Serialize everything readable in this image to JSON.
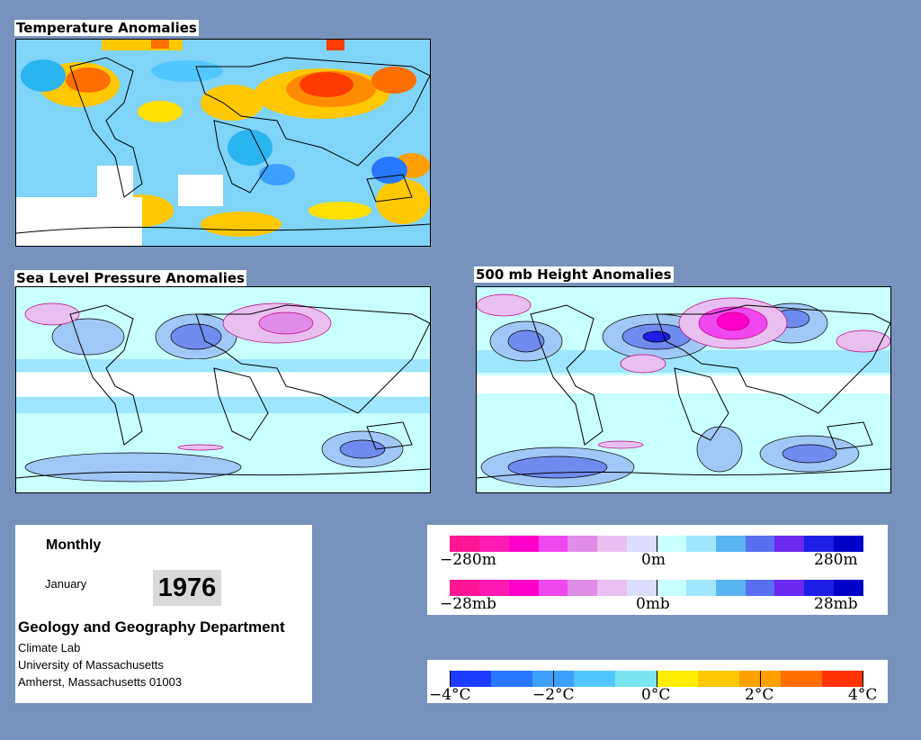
{
  "maps": {
    "temperature": {
      "title": "Temperature Anomalies"
    },
    "slp": {
      "title": "Sea Level Pressure Anomalies"
    },
    "height": {
      "title": "500 mb Height Anomalies"
    }
  },
  "info": {
    "period": "Monthly",
    "month": "January",
    "year": "1976",
    "department": "Geology and Geography Department",
    "lab": "Climate Lab",
    "university": "University of Massachusetts",
    "address": "Amherst, Massachusetts 01003"
  },
  "legends": {
    "height_scale": {
      "labels": [
        "−280m",
        "0m",
        "280m"
      ],
      "colors": [
        "#ff1493",
        "#ff1ab3",
        "#ff00cc",
        "#f048f0",
        "#e08ce8",
        "#e8bff0",
        "#dcdcff",
        "#c8ffff",
        "#9ee6ff",
        "#5ab4f0",
        "#5a6ef0",
        "#6a28f0",
        "#1e1ee6",
        "#0000c8"
      ]
    },
    "pressure_scale": {
      "labels": [
        "−28mb",
        "0mb",
        "28mb"
      ],
      "colors": [
        "#ff1493",
        "#ff1ab3",
        "#ff00cc",
        "#f048f0",
        "#e08ce8",
        "#e8bff0",
        "#dcdcff",
        "#c8ffff",
        "#9ee6ff",
        "#5ab4f0",
        "#5a6ef0",
        "#6a28f0",
        "#1e1ee6",
        "#0000c8"
      ]
    },
    "temperature_scale": {
      "labels": [
        "−4°C",
        "−2°C",
        "0°C",
        "2°C",
        "4°C"
      ],
      "colors": [
        "#1e3cff",
        "#2878ff",
        "#3ca0ff",
        "#50c8ff",
        "#78e6f0",
        "#ffee00",
        "#ffc800",
        "#ffa000",
        "#ff6e00",
        "#ff3200"
      ]
    }
  },
  "colors": {
    "page_background": "#7792bc",
    "temp_cold": "#2ab4f0",
    "temp_warm": "#ffc800",
    "temp_hot": "#ff3c00",
    "anomaly_blue": "#6e8cf0",
    "anomaly_pink": "#f0a0e6",
    "anomaly_cyan": "#c8ffff"
  }
}
